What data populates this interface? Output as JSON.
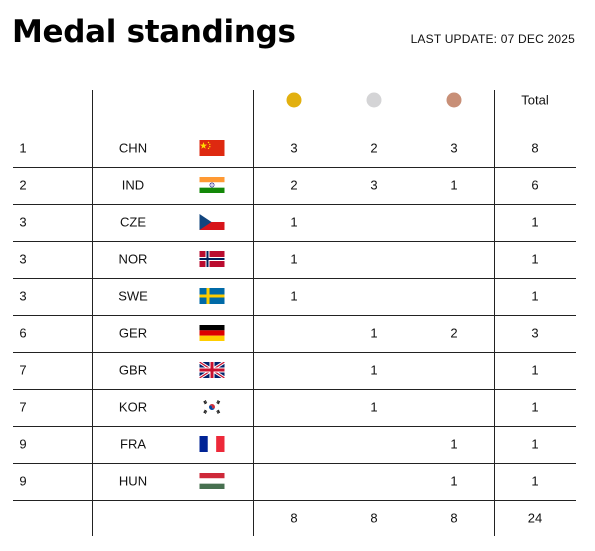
{
  "title": "Medal standings",
  "last_update": "LAST UPDATE: 07 DEC 2025",
  "header": {
    "gold_icon": "gold-medal-icon",
    "silver_icon": "silver-medal-icon",
    "bronze_icon": "bronze-medal-icon",
    "total_label": "Total"
  },
  "colors": {
    "gold": "#e2b00f",
    "silver": "#d4d4d6",
    "bronze": "#c88f77",
    "rule": "#222222"
  },
  "rows": [
    {
      "rank": "1",
      "code": "CHN",
      "flag": "china-flag-icon",
      "gold": "3",
      "silver": "2",
      "bronze": "3",
      "total": "8"
    },
    {
      "rank": "2",
      "code": "IND",
      "flag": "india-flag-icon",
      "gold": "2",
      "silver": "3",
      "bronze": "1",
      "total": "6"
    },
    {
      "rank": "3",
      "code": "CZE",
      "flag": "czechia-flag-icon",
      "gold": "1",
      "silver": "",
      "bronze": "",
      "total": "1"
    },
    {
      "rank": "3",
      "code": "NOR",
      "flag": "norway-flag-icon",
      "gold": "1",
      "silver": "",
      "bronze": "",
      "total": "1"
    },
    {
      "rank": "3",
      "code": "SWE",
      "flag": "sweden-flag-icon",
      "gold": "1",
      "silver": "",
      "bronze": "",
      "total": "1"
    },
    {
      "rank": "6",
      "code": "GER",
      "flag": "germany-flag-icon",
      "gold": "",
      "silver": "1",
      "bronze": "2",
      "total": "3"
    },
    {
      "rank": "7",
      "code": "GBR",
      "flag": "uk-flag-icon",
      "gold": "",
      "silver": "1",
      "bronze": "",
      "total": "1"
    },
    {
      "rank": "7",
      "code": "KOR",
      "flag": "korea-flag-icon",
      "gold": "",
      "silver": "1",
      "bronze": "",
      "total": "1"
    },
    {
      "rank": "9",
      "code": "FRA",
      "flag": "france-flag-icon",
      "gold": "",
      "silver": "",
      "bronze": "1",
      "total": "1"
    },
    {
      "rank": "9",
      "code": "HUN",
      "flag": "hungary-flag-icon",
      "gold": "",
      "silver": "",
      "bronze": "1",
      "total": "1"
    }
  ],
  "totals": {
    "gold": "8",
    "silver": "8",
    "bronze": "8",
    "total": "24"
  }
}
